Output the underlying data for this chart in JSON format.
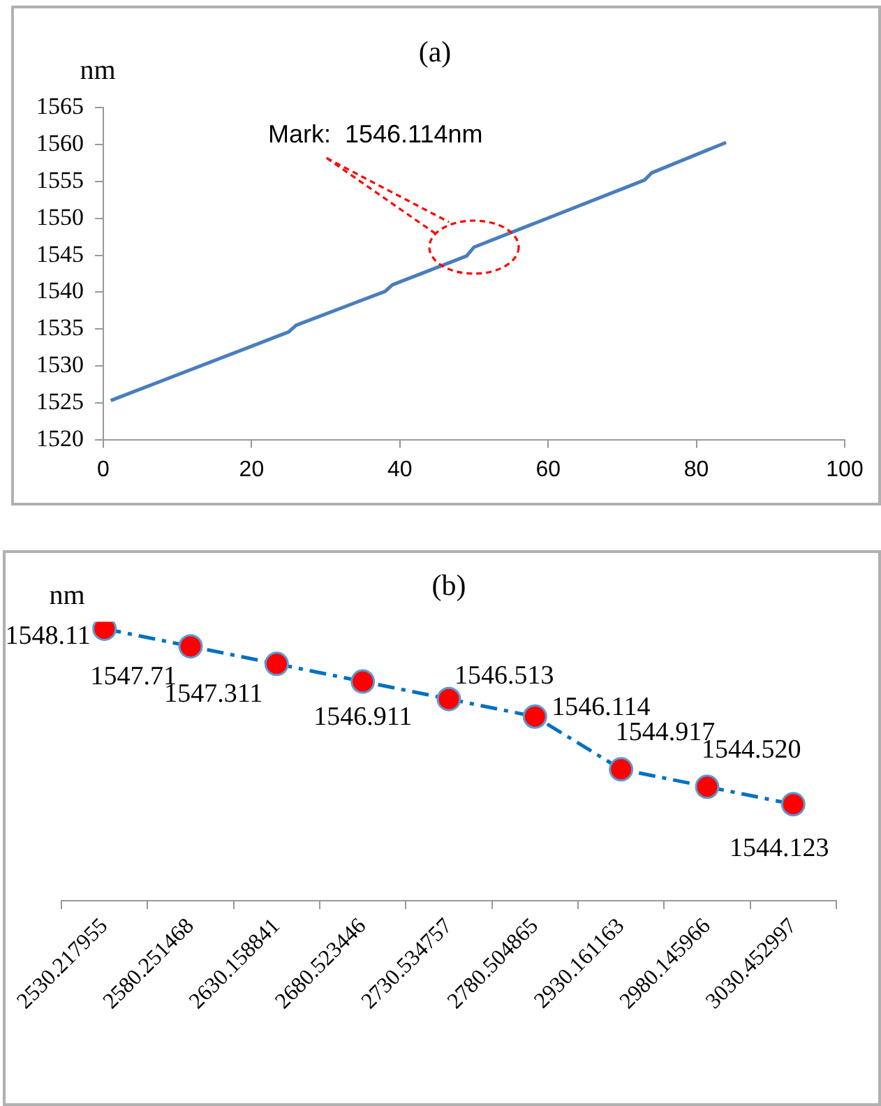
{
  "chart_data": [
    {
      "type": "line",
      "title": "(a)",
      "ylabel": "nm",
      "x": [
        1,
        25,
        26,
        38,
        39,
        49,
        50,
        73,
        74,
        84
      ],
      "series": [
        {
          "color": "#4a7ebb",
          "values": [
            1525.3,
            1534.6,
            1535.5,
            1540.1,
            1541.0,
            1544.9,
            1546.1,
            1555.2,
            1556.2,
            1560.3
          ]
        }
      ],
      "xlim": [
        0,
        100
      ],
      "xticks": [
        0,
        20,
        40,
        60,
        80,
        100
      ],
      "ylim": [
        1520,
        1565
      ],
      "yticks": [
        1520,
        1525,
        1530,
        1535,
        1540,
        1545,
        1550,
        1555,
        1560,
        1565
      ],
      "grid": false,
      "legend": false,
      "marker": "none",
      "line_style": "solid",
      "annotations": [
        "Mark:  1546.114nm"
      ]
    },
    {
      "type": "line",
      "title": "(b)",
      "ylabel": "nm",
      "categories": [
        "2530.217955",
        "2580.251468",
        "2630.158841",
        "2680.523446",
        "2730.534757",
        "2780.504865",
        "2930.161163",
        "2980.145966",
        "3030.452997"
      ],
      "series": [
        {
          "color": "#0070c0",
          "values": [
            1548.11,
            1547.71,
            1547.311,
            1546.911,
            1546.513,
            1546.114,
            1544.917,
            1544.52,
            1544.123
          ],
          "value_labels": [
            "1548.11",
            "1547.71",
            "1547.311",
            "1546.911",
            "1546.513",
            "1546.114",
            "1544.917",
            "1544.520",
            "1544.123"
          ]
        }
      ],
      "tick_labels": "x",
      "grid": false,
      "legend": false,
      "marker": "circle",
      "line_style": "dashed"
    }
  ]
}
